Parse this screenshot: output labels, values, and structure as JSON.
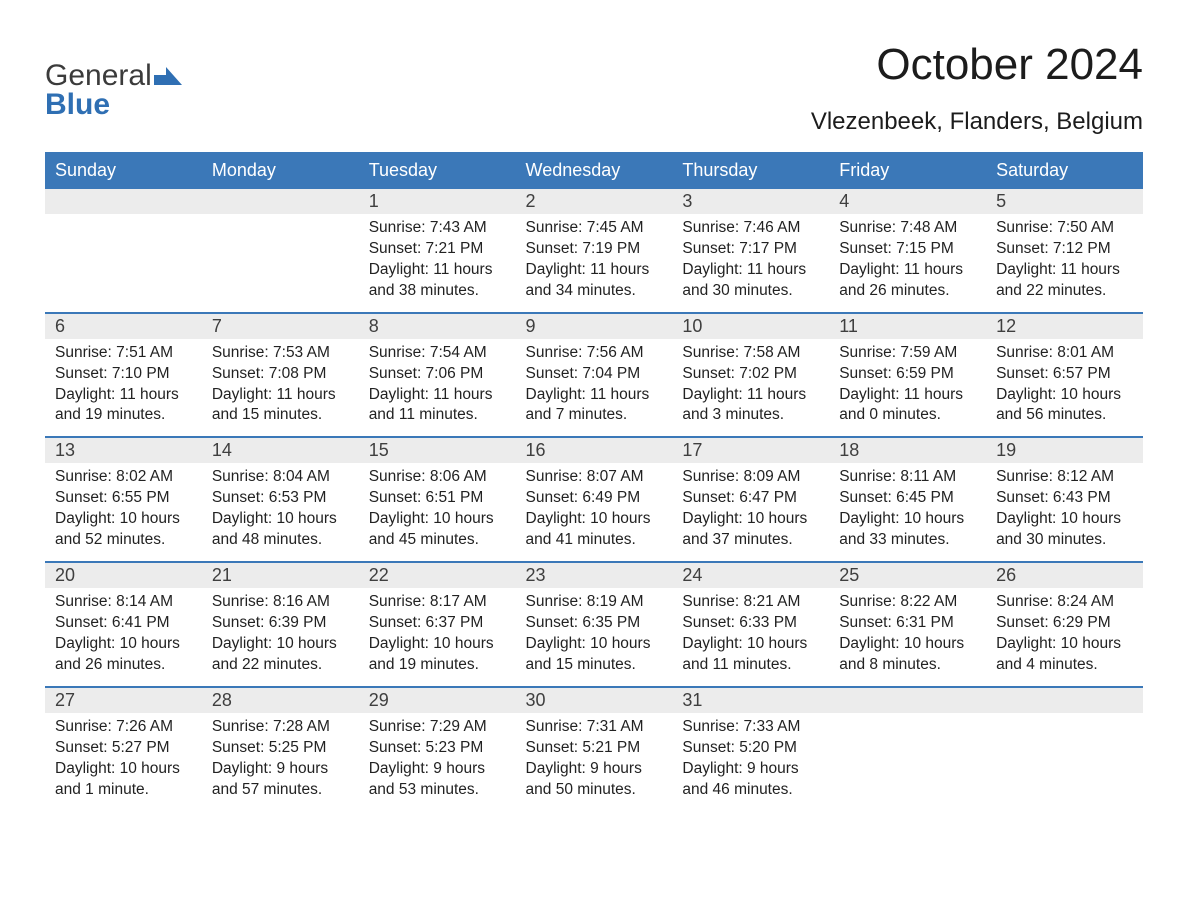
{
  "logo": {
    "word1": "General",
    "word2": "Blue",
    "icon_color": "#2f6fb3"
  },
  "title": "October 2024",
  "location": "Vlezenbeek, Flanders, Belgium",
  "colors": {
    "header_bg": "#3b78b8",
    "header_text": "#ffffff",
    "daynum_bg": "#ececec",
    "rule": "#3b78b8",
    "text": "#222222",
    "page_bg": "#ffffff"
  },
  "weekdays": [
    "Sunday",
    "Monday",
    "Tuesday",
    "Wednesday",
    "Thursday",
    "Friday",
    "Saturday"
  ],
  "weeks": [
    [
      null,
      null,
      {
        "n": "1",
        "sr": "Sunrise: 7:43 AM",
        "ss": "Sunset: 7:21 PM",
        "dl1": "Daylight: 11 hours",
        "dl2": "and 38 minutes."
      },
      {
        "n": "2",
        "sr": "Sunrise: 7:45 AM",
        "ss": "Sunset: 7:19 PM",
        "dl1": "Daylight: 11 hours",
        "dl2": "and 34 minutes."
      },
      {
        "n": "3",
        "sr": "Sunrise: 7:46 AM",
        "ss": "Sunset: 7:17 PM",
        "dl1": "Daylight: 11 hours",
        "dl2": "and 30 minutes."
      },
      {
        "n": "4",
        "sr": "Sunrise: 7:48 AM",
        "ss": "Sunset: 7:15 PM",
        "dl1": "Daylight: 11 hours",
        "dl2": "and 26 minutes."
      },
      {
        "n": "5",
        "sr": "Sunrise: 7:50 AM",
        "ss": "Sunset: 7:12 PM",
        "dl1": "Daylight: 11 hours",
        "dl2": "and 22 minutes."
      }
    ],
    [
      {
        "n": "6",
        "sr": "Sunrise: 7:51 AM",
        "ss": "Sunset: 7:10 PM",
        "dl1": "Daylight: 11 hours",
        "dl2": "and 19 minutes."
      },
      {
        "n": "7",
        "sr": "Sunrise: 7:53 AM",
        "ss": "Sunset: 7:08 PM",
        "dl1": "Daylight: 11 hours",
        "dl2": "and 15 minutes."
      },
      {
        "n": "8",
        "sr": "Sunrise: 7:54 AM",
        "ss": "Sunset: 7:06 PM",
        "dl1": "Daylight: 11 hours",
        "dl2": "and 11 minutes."
      },
      {
        "n": "9",
        "sr": "Sunrise: 7:56 AM",
        "ss": "Sunset: 7:04 PM",
        "dl1": "Daylight: 11 hours",
        "dl2": "and 7 minutes."
      },
      {
        "n": "10",
        "sr": "Sunrise: 7:58 AM",
        "ss": "Sunset: 7:02 PM",
        "dl1": "Daylight: 11 hours",
        "dl2": "and 3 minutes."
      },
      {
        "n": "11",
        "sr": "Sunrise: 7:59 AM",
        "ss": "Sunset: 6:59 PM",
        "dl1": "Daylight: 11 hours",
        "dl2": "and 0 minutes."
      },
      {
        "n": "12",
        "sr": "Sunrise: 8:01 AM",
        "ss": "Sunset: 6:57 PM",
        "dl1": "Daylight: 10 hours",
        "dl2": "and 56 minutes."
      }
    ],
    [
      {
        "n": "13",
        "sr": "Sunrise: 8:02 AM",
        "ss": "Sunset: 6:55 PM",
        "dl1": "Daylight: 10 hours",
        "dl2": "and 52 minutes."
      },
      {
        "n": "14",
        "sr": "Sunrise: 8:04 AM",
        "ss": "Sunset: 6:53 PM",
        "dl1": "Daylight: 10 hours",
        "dl2": "and 48 minutes."
      },
      {
        "n": "15",
        "sr": "Sunrise: 8:06 AM",
        "ss": "Sunset: 6:51 PM",
        "dl1": "Daylight: 10 hours",
        "dl2": "and 45 minutes."
      },
      {
        "n": "16",
        "sr": "Sunrise: 8:07 AM",
        "ss": "Sunset: 6:49 PM",
        "dl1": "Daylight: 10 hours",
        "dl2": "and 41 minutes."
      },
      {
        "n": "17",
        "sr": "Sunrise: 8:09 AM",
        "ss": "Sunset: 6:47 PM",
        "dl1": "Daylight: 10 hours",
        "dl2": "and 37 minutes."
      },
      {
        "n": "18",
        "sr": "Sunrise: 8:11 AM",
        "ss": "Sunset: 6:45 PM",
        "dl1": "Daylight: 10 hours",
        "dl2": "and 33 minutes."
      },
      {
        "n": "19",
        "sr": "Sunrise: 8:12 AM",
        "ss": "Sunset: 6:43 PM",
        "dl1": "Daylight: 10 hours",
        "dl2": "and 30 minutes."
      }
    ],
    [
      {
        "n": "20",
        "sr": "Sunrise: 8:14 AM",
        "ss": "Sunset: 6:41 PM",
        "dl1": "Daylight: 10 hours",
        "dl2": "and 26 minutes."
      },
      {
        "n": "21",
        "sr": "Sunrise: 8:16 AM",
        "ss": "Sunset: 6:39 PM",
        "dl1": "Daylight: 10 hours",
        "dl2": "and 22 minutes."
      },
      {
        "n": "22",
        "sr": "Sunrise: 8:17 AM",
        "ss": "Sunset: 6:37 PM",
        "dl1": "Daylight: 10 hours",
        "dl2": "and 19 minutes."
      },
      {
        "n": "23",
        "sr": "Sunrise: 8:19 AM",
        "ss": "Sunset: 6:35 PM",
        "dl1": "Daylight: 10 hours",
        "dl2": "and 15 minutes."
      },
      {
        "n": "24",
        "sr": "Sunrise: 8:21 AM",
        "ss": "Sunset: 6:33 PM",
        "dl1": "Daylight: 10 hours",
        "dl2": "and 11 minutes."
      },
      {
        "n": "25",
        "sr": "Sunrise: 8:22 AM",
        "ss": "Sunset: 6:31 PM",
        "dl1": "Daylight: 10 hours",
        "dl2": "and 8 minutes."
      },
      {
        "n": "26",
        "sr": "Sunrise: 8:24 AM",
        "ss": "Sunset: 6:29 PM",
        "dl1": "Daylight: 10 hours",
        "dl2": "and 4 minutes."
      }
    ],
    [
      {
        "n": "27",
        "sr": "Sunrise: 7:26 AM",
        "ss": "Sunset: 5:27 PM",
        "dl1": "Daylight: 10 hours",
        "dl2": "and 1 minute."
      },
      {
        "n": "28",
        "sr": "Sunrise: 7:28 AM",
        "ss": "Sunset: 5:25 PM",
        "dl1": "Daylight: 9 hours",
        "dl2": "and 57 minutes."
      },
      {
        "n": "29",
        "sr": "Sunrise: 7:29 AM",
        "ss": "Sunset: 5:23 PM",
        "dl1": "Daylight: 9 hours",
        "dl2": "and 53 minutes."
      },
      {
        "n": "30",
        "sr": "Sunrise: 7:31 AM",
        "ss": "Sunset: 5:21 PM",
        "dl1": "Daylight: 9 hours",
        "dl2": "and 50 minutes."
      },
      {
        "n": "31",
        "sr": "Sunrise: 7:33 AM",
        "ss": "Sunset: 5:20 PM",
        "dl1": "Daylight: 9 hours",
        "dl2": "and 46 minutes."
      },
      null,
      null
    ]
  ]
}
